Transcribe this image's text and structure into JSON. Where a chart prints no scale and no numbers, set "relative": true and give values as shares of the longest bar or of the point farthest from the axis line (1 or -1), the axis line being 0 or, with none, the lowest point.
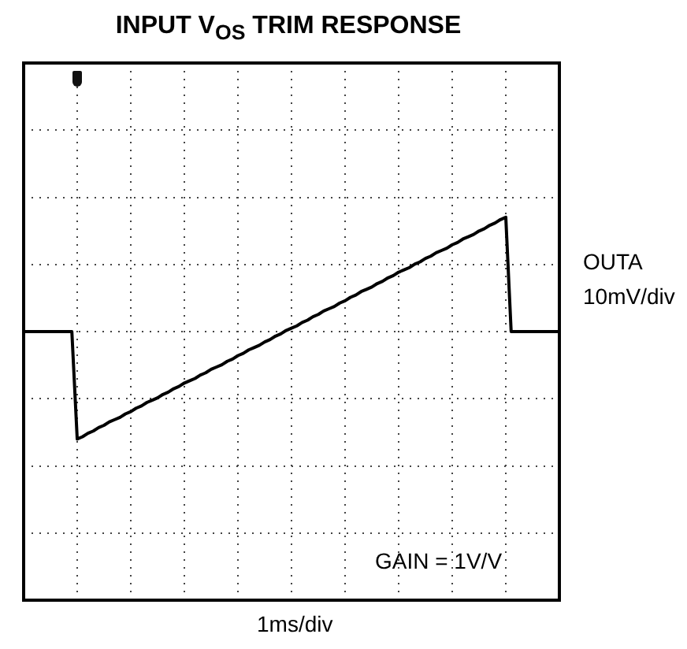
{
  "chart_data": {
    "type": "line",
    "title": "INPUT V$_{OS}$ TRIM RESPONSE",
    "relative": true,
    "grid": true,
    "marker": "none",
    "line_style": "solid",
    "annotations": [
      "OUTA",
      "10mV/div",
      "GAIN = 1V/V",
      "1ms/div"
    ],
    "categories": [
      null,
      null,
      null,
      null,
      null,
      null,
      null,
      null,
      null,
      null,
      null,
      null,
      null,
      null,
      null,
      null,
      null,
      null,
      null,
      null,
      null,
      null,
      null,
      null,
      null,
      null,
      null,
      null,
      null,
      null,
      null,
      null,
      null,
      null,
      null,
      null,
      null,
      null,
      null,
      null,
      null,
      null,
      null,
      null,
      null,
      null,
      null,
      null,
      null,
      null,
      null,
      null,
      null,
      null,
      null,
      null,
      null,
      null,
      null,
      null,
      null,
      null,
      null,
      null,
      null,
      null,
      null,
      null,
      null,
      null,
      null,
      null,
      null,
      null,
      null,
      null,
      null,
      null,
      null,
      null,
      null,
      null,
      null,
      null,
      null,
      null,
      null,
      null,
      null,
      null,
      null,
      null,
      null,
      null,
      null,
      null,
      null,
      null,
      null,
      null,
      null
    ],
    "series": [
      {
        "color": "#000000",
        "values": [
          0,
          0,
          0,
          0,
          0,
          0,
          0,
          0,
          0,
          0,
          -0.94,
          -0.92,
          -0.89,
          -0.87,
          -0.84,
          -0.82,
          -0.79,
          -0.77,
          -0.75,
          -0.72,
          -0.7,
          -0.67,
          -0.65,
          -0.62,
          -0.6,
          -0.58,
          -0.55,
          -0.53,
          -0.5,
          -0.48,
          -0.45,
          -0.43,
          -0.41,
          -0.38,
          -0.36,
          -0.33,
          -0.31,
          -0.29,
          -0.26,
          -0.24,
          -0.21,
          -0.19,
          -0.16,
          -0.14,
          -0.12,
          -0.09,
          -0.07,
          -0.04,
          -0.02,
          0.01,
          0.03,
          0.05,
          0.08,
          0.1,
          0.13,
          0.15,
          0.18,
          0.2,
          0.22,
          0.25,
          0.27,
          0.3,
          0.32,
          0.35,
          0.37,
          0.39,
          0.42,
          0.44,
          0.47,
          0.49,
          0.52,
          0.54,
          0.56,
          0.59,
          0.61,
          0.64,
          0.66,
          0.69,
          0.71,
          0.73,
          0.76,
          0.78,
          0.81,
          0.83,
          0.85,
          0.88,
          0.9,
          0.93,
          0.95,
          0.98,
          1.0,
          0,
          0,
          0,
          0,
          0,
          0,
          0,
          0,
          0,
          0
        ]
      }
    ]
  }
}
